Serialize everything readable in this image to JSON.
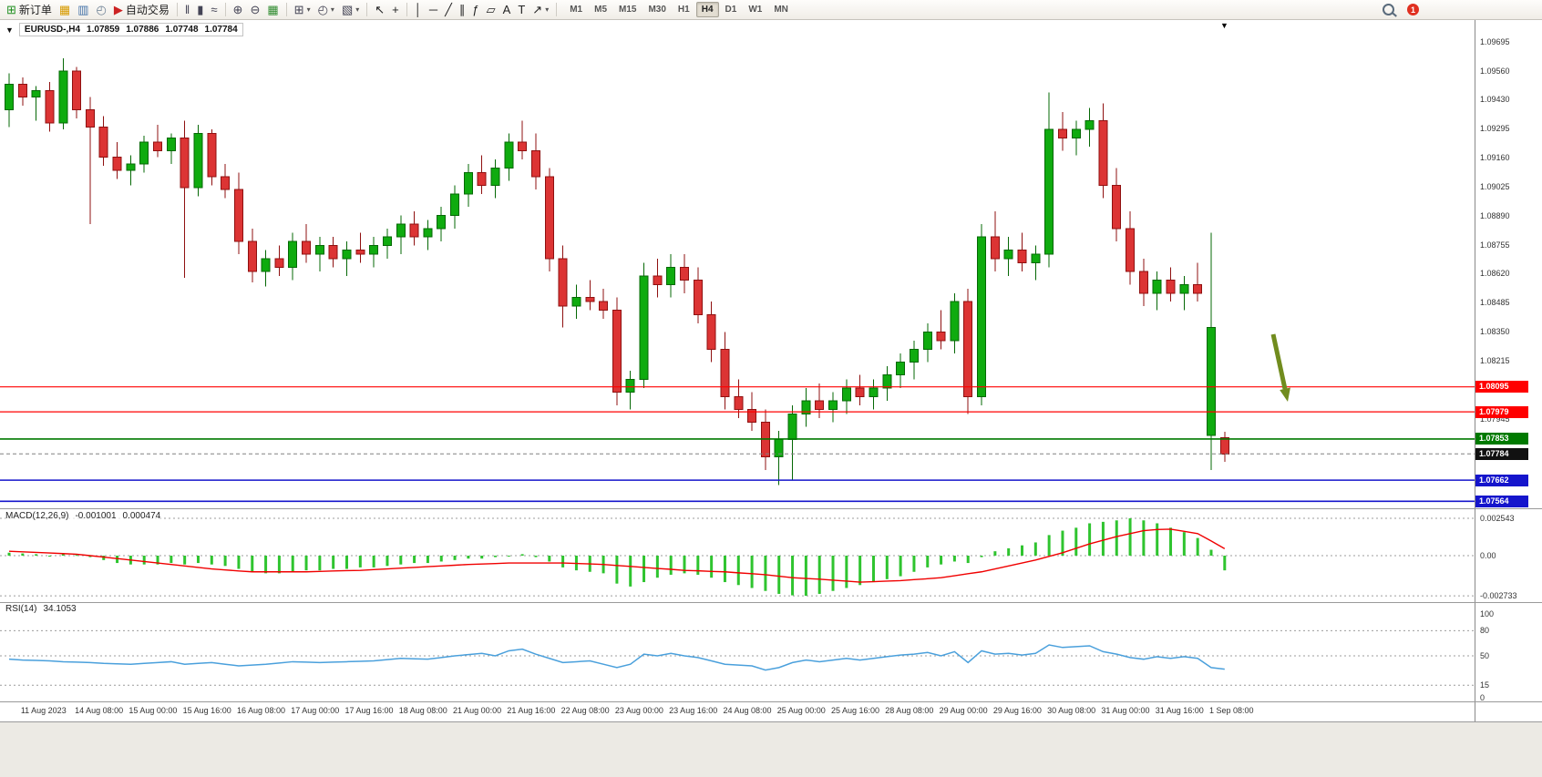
{
  "window": {
    "symbol_period": "EURUSD-,H4",
    "open": "1.07859",
    "high": "1.07886",
    "low": "1.07748",
    "close": "1.07784"
  },
  "icons": {
    "collapse_marker": "▼",
    "bar_marker": "▼",
    "caret": "▾"
  },
  "toolbar": {
    "items": [
      {
        "kind": "button",
        "name": "new-order-button",
        "icon_name": "new-order-icon",
        "glyph": "⊞",
        "glyph_color": "#1f8f1f",
        "label": "新订单"
      },
      {
        "kind": "icon",
        "name": "profiles-icon",
        "glyph": "▦",
        "glyph_color": "#d79b00"
      },
      {
        "kind": "icon",
        "name": "charts-icon",
        "glyph": "▥",
        "glyph_color": "#4472a8"
      },
      {
        "kind": "icon",
        "name": "refresh-icon",
        "glyph": "◴",
        "glyph_color": "#6b7f93"
      },
      {
        "kind": "button",
        "name": "auto-trading-button",
        "icon_name": "auto-trading-icon",
        "glyph": "▶",
        "glyph_color": "#cc2222",
        "label": "自动交易"
      },
      {
        "kind": "sep"
      },
      {
        "kind": "icon",
        "name": "bar-chart-type-icon",
        "glyph": "‖",
        "glyph_color": "#444455"
      },
      {
        "kind": "icon",
        "name": "candle-chart-type-icon",
        "glyph": "▮",
        "glyph_color": "#444455"
      },
      {
        "kind": "icon",
        "name": "line-chart-type-icon",
        "glyph": "≈",
        "glyph_color": "#444455"
      },
      {
        "kind": "sep"
      },
      {
        "kind": "icon",
        "name": "zoom-in-icon",
        "glyph": "⊕",
        "glyph_color": "#444455"
      },
      {
        "kind": "icon",
        "name": "zoom-out-icon",
        "glyph": "⊖",
        "glyph_color": "#444455"
      },
      {
        "kind": "icon",
        "name": "tile-windows-icon",
        "glyph": "▦",
        "glyph_color": "#2e8b2e"
      },
      {
        "kind": "sep"
      },
      {
        "kind": "icon",
        "name": "new-chart-button",
        "glyph": "⊞",
        "glyph_color": "#444455",
        "caret": true
      },
      {
        "kind": "icon",
        "name": "periods-button",
        "glyph": "◴",
        "glyph_color": "#444455",
        "caret": true
      },
      {
        "kind": "icon",
        "name": "templates-button",
        "glyph": "▧",
        "glyph_color": "#444455",
        "caret": true
      },
      {
        "kind": "sep"
      },
      {
        "kind": "icon",
        "name": "cursor-icon",
        "glyph": "↖",
        "glyph_color": "#222222"
      },
      {
        "kind": "icon",
        "name": "crosshair-icon",
        "glyph": "+",
        "glyph_color": "#222222"
      },
      {
        "kind": "sep"
      },
      {
        "kind": "icon",
        "name": "vertical-line-icon",
        "glyph": "│",
        "glyph_color": "#222222"
      },
      {
        "kind": "icon",
        "name": "horizontal-line-icon",
        "glyph": "─",
        "glyph_color": "#222222"
      },
      {
        "kind": "icon",
        "name": "trendline-icon",
        "glyph": "╱",
        "glyph_color": "#222222"
      },
      {
        "kind": "icon",
        "name": "channel-icon",
        "glyph": "∥",
        "glyph_color": "#222222"
      },
      {
        "kind": "icon",
        "name": "fibonacci-icon",
        "glyph": "ƒ",
        "glyph_color": "#222222"
      },
      {
        "kind": "icon",
        "name": "shapes-icon",
        "glyph": "▱",
        "glyph_color": "#222222"
      },
      {
        "kind": "icon",
        "name": "text-icon",
        "glyph": "A",
        "glyph_color": "#222222"
      },
      {
        "kind": "icon",
        "name": "text-label-icon",
        "glyph": "T",
        "glyph_color": "#222222"
      },
      {
        "kind": "icon",
        "name": "arrows-icon",
        "glyph": "↗",
        "glyph_color": "#222222",
        "caret": true
      },
      {
        "kind": "sep"
      }
    ],
    "timeframes": [
      "M1",
      "M5",
      "M15",
      "M30",
      "H1",
      "H4",
      "D1",
      "W1",
      "MN"
    ],
    "active_timeframe": "H4",
    "notification_badge": "1"
  },
  "colors": {
    "bull": "#0fab0f",
    "bull_border": "#056805",
    "bear": "#dc3434",
    "bear_border": "#8f1010",
    "macd_bar": "#2fc42f",
    "macd_signal": "#f00000",
    "rsi_line": "#4aa0dc",
    "grid": "#9c9c9c",
    "bid_line": "#808080",
    "arrow": "#718c1e"
  },
  "chart_data": {
    "type": "candlestick",
    "symbol": "EURUSD-",
    "period": "H4",
    "price_scale_labels": [
      "1.09695",
      "1.09560",
      "1.09430",
      "1.09295",
      "1.09160",
      "1.09025",
      "1.08890",
      "1.08755",
      "1.08620",
      "1.08485",
      "1.08350",
      "1.08215",
      "1.07945"
    ],
    "time_labels": [
      "11 Aug 2023",
      "14 Aug 08:00",
      "15 Aug 00:00",
      "15 Aug 16:00",
      "16 Aug 08:00",
      "17 Aug 00:00",
      "17 Aug 16:00",
      "18 Aug 08:00",
      "21 Aug 00:00",
      "21 Aug 16:00",
      "22 Aug 08:00",
      "23 Aug 00:00",
      "23 Aug 16:00",
      "24 Aug 08:00",
      "25 Aug 00:00",
      "25 Aug 16:00",
      "28 Aug 08:00",
      "29 Aug 00:00",
      "29 Aug 16:00",
      "30 Aug 08:00",
      "31 Aug 00:00",
      "31 Aug 16:00",
      "1 Sep 08:00"
    ],
    "hlines": [
      {
        "price": 1.08095,
        "label": "1.08095",
        "color": "#ff0000",
        "width": 1.2
      },
      {
        "price": 1.07979,
        "label": "1.07979",
        "color": "#ff0000",
        "width": 1.2
      },
      {
        "price": 1.07853,
        "label": "1.07853",
        "color": "#007a00",
        "width": 1.6
      },
      {
        "price": 1.07662,
        "label": "1.07662",
        "color": "#1515cc",
        "width": 1.6
      },
      {
        "price": 1.07564,
        "label": "1.07564",
        "color": "#1515cc",
        "width": 1.6
      }
    ],
    "bid": {
      "price": 1.07784,
      "label": "1.07784",
      "tag_color": "#111111"
    },
    "candles": [
      [
        1.0938,
        1.0955,
        1.093,
        1.095
      ],
      [
        1.095,
        1.0953,
        1.094,
        1.0944
      ],
      [
        1.0944,
        1.0949,
        1.0933,
        1.0947
      ],
      [
        1.0947,
        1.0951,
        1.0928,
        1.0932
      ],
      [
        1.0932,
        1.0962,
        1.0929,
        1.0956
      ],
      [
        1.0956,
        1.0958,
        1.0934,
        1.0938
      ],
      [
        1.0938,
        1.0944,
        1.0885,
        1.093
      ],
      [
        1.093,
        1.0935,
        1.0912,
        1.0916
      ],
      [
        1.0916,
        1.0923,
        1.0906,
        1.091
      ],
      [
        1.091,
        1.0917,
        1.0903,
        1.0913
      ],
      [
        1.0913,
        1.0926,
        1.0909,
        1.0923
      ],
      [
        1.0923,
        1.0931,
        1.0916,
        1.0919
      ],
      [
        1.0919,
        1.0927,
        1.0913,
        1.0925
      ],
      [
        1.0925,
        1.0933,
        1.086,
        1.0902
      ],
      [
        1.0902,
        1.0931,
        1.0898,
        1.0927
      ],
      [
        1.0927,
        1.0929,
        1.0903,
        1.0907
      ],
      [
        1.0907,
        1.0913,
        1.0897,
        1.0901
      ],
      [
        1.0901,
        1.0909,
        1.0871,
        1.0877
      ],
      [
        1.0877,
        1.0883,
        1.0858,
        1.0863
      ],
      [
        1.0863,
        1.0873,
        1.0856,
        1.0869
      ],
      [
        1.0869,
        1.0875,
        1.0861,
        1.0865
      ],
      [
        1.0865,
        1.0881,
        1.0859,
        1.0877
      ],
      [
        1.0877,
        1.0885,
        1.0867,
        1.0871
      ],
      [
        1.0871,
        1.0879,
        1.0863,
        1.0875
      ],
      [
        1.0875,
        1.0879,
        1.0865,
        1.0869
      ],
      [
        1.0869,
        1.0877,
        1.0861,
        1.0873
      ],
      [
        1.0873,
        1.0881,
        1.0867,
        1.0871
      ],
      [
        1.0871,
        1.0879,
        1.0865,
        1.0875
      ],
      [
        1.0875,
        1.0883,
        1.0869,
        1.0879
      ],
      [
        1.0879,
        1.0889,
        1.0871,
        1.0885
      ],
      [
        1.0885,
        1.0891,
        1.0875,
        1.0879
      ],
      [
        1.0879,
        1.0887,
        1.0873,
        1.0883
      ],
      [
        1.0883,
        1.0893,
        1.0877,
        1.0889
      ],
      [
        1.0889,
        1.0903,
        1.0883,
        1.0899
      ],
      [
        1.0899,
        1.0913,
        1.0893,
        1.0909
      ],
      [
        1.0909,
        1.0917,
        1.0899,
        1.0903
      ],
      [
        1.0903,
        1.0915,
        1.0897,
        1.0911
      ],
      [
        1.0911,
        1.0927,
        1.0905,
        1.0923
      ],
      [
        1.0923,
        1.0933,
        1.0915,
        1.0919
      ],
      [
        1.0919,
        1.0927,
        1.0901,
        1.0907
      ],
      [
        1.0907,
        1.0911,
        1.0863,
        1.0869
      ],
      [
        1.0869,
        1.0875,
        1.0837,
        1.0847
      ],
      [
        1.0847,
        1.0857,
        1.0841,
        1.0851
      ],
      [
        1.0851,
        1.0859,
        1.0845,
        1.0849
      ],
      [
        1.0849,
        1.0855,
        1.0841,
        1.0845
      ],
      [
        1.0845,
        1.0851,
        1.0801,
        1.0807
      ],
      [
        1.0807,
        1.0817,
        1.0799,
        1.0813
      ],
      [
        1.0813,
        1.0867,
        1.0809,
        1.0861
      ],
      [
        1.0861,
        1.0869,
        1.0851,
        1.0857
      ],
      [
        1.0857,
        1.0871,
        1.0851,
        1.0865
      ],
      [
        1.0865,
        1.0871,
        1.0853,
        1.0859
      ],
      [
        1.0859,
        1.0865,
        1.0839,
        1.0843
      ],
      [
        1.0843,
        1.0849,
        1.0821,
        1.0827
      ],
      [
        1.0827,
        1.0835,
        1.0799,
        1.0805
      ],
      [
        1.0805,
        1.0813,
        1.0795,
        1.0799
      ],
      [
        1.0799,
        1.0807,
        1.0789,
        1.0793
      ],
      [
        1.0793,
        1.0799,
        1.0771,
        1.0777
      ],
      [
        1.0777,
        1.0789,
        1.0764,
        1.0785
      ],
      [
        1.0785,
        1.0801,
        1.0766,
        1.0797
      ],
      [
        1.0797,
        1.0809,
        1.0791,
        1.0803
      ],
      [
        1.0803,
        1.0811,
        1.0795,
        1.0799
      ],
      [
        1.0799,
        1.0807,
        1.0793,
        1.0803
      ],
      [
        1.0803,
        1.0813,
        1.0797,
        1.0809
      ],
      [
        1.0809,
        1.0815,
        1.0801,
        1.0805
      ],
      [
        1.0805,
        1.0813,
        1.0799,
        1.0809
      ],
      [
        1.0809,
        1.0819,
        1.0803,
        1.0815
      ],
      [
        1.0815,
        1.0825,
        1.0809,
        1.0821
      ],
      [
        1.0821,
        1.0831,
        1.0813,
        1.0827
      ],
      [
        1.0827,
        1.0839,
        1.0821,
        1.0835
      ],
      [
        1.0835,
        1.0845,
        1.0827,
        1.0831
      ],
      [
        1.0831,
        1.0853,
        1.0825,
        1.0849
      ],
      [
        1.0849,
        1.0855,
        1.0797,
        1.0805
      ],
      [
        1.0805,
        1.0885,
        1.0801,
        1.0879
      ],
      [
        1.0879,
        1.0891,
        1.0863,
        1.0869
      ],
      [
        1.0869,
        1.0879,
        1.0861,
        1.0873
      ],
      [
        1.0873,
        1.0881,
        1.0863,
        1.0867
      ],
      [
        1.0867,
        1.0875,
        1.0859,
        1.0871
      ],
      [
        1.0871,
        1.0946,
        1.0865,
        1.0929
      ],
      [
        1.0929,
        1.0937,
        1.0919,
        1.0925
      ],
      [
        1.0925,
        1.0933,
        1.0917,
        1.0929
      ],
      [
        1.0929,
        1.0939,
        1.0921,
        1.0933
      ],
      [
        1.0933,
        1.0941,
        1.0897,
        1.0903
      ],
      [
        1.0903,
        1.0911,
        1.0877,
        1.0883
      ],
      [
        1.0883,
        1.0891,
        1.0857,
        1.0863
      ],
      [
        1.0863,
        1.0869,
        1.0847,
        1.0853
      ],
      [
        1.0853,
        1.0863,
        1.0845,
        1.0859
      ],
      [
        1.0859,
        1.0865,
        1.0849,
        1.0853
      ],
      [
        1.0853,
        1.0861,
        1.0845,
        1.0857
      ],
      [
        1.0857,
        1.0867,
        1.0849,
        1.0853
      ],
      [
        1.0787,
        1.0881,
        1.0771,
        1.0837
      ],
      [
        1.07859,
        1.07886,
        1.07748,
        1.07784
      ]
    ],
    "macd": {
      "label": "MACD(12,26,9)",
      "value_main": "-0.001001",
      "value_signal": "0.000474",
      "scale": [
        {
          "text": "0.002543",
          "value": 0.002543
        },
        {
          "text": "0.00",
          "value": 0
        },
        {
          "text": "-0.002733",
          "value": -0.002733
        }
      ],
      "histogram": [
        0.0002,
        0.00015,
        0.0001,
        0.0,
        0.0001,
        5e-05,
        -0.0001,
        -0.0003,
        -0.0005,
        -0.0006,
        -0.0006,
        -0.0006,
        -0.0005,
        -0.0006,
        -0.0005,
        -0.0006,
        -0.0007,
        -0.0009,
        -0.0011,
        -0.0012,
        -0.0012,
        -0.0011,
        -0.001,
        -0.001,
        -0.0009,
        -0.0009,
        -0.0008,
        -0.0008,
        -0.0007,
        -0.0006,
        -0.0005,
        -0.0005,
        -0.0004,
        -0.0003,
        -0.0002,
        -0.0002,
        -0.0001,
        0.0,
        0.0001,
        -0.0001,
        -0.0004,
        -0.0008,
        -0.001,
        -0.0011,
        -0.0012,
        -0.0019,
        -0.0021,
        -0.0018,
        -0.0015,
        -0.0013,
        -0.0012,
        -0.0013,
        -0.0015,
        -0.0018,
        -0.002,
        -0.0022,
        -0.0024,
        -0.0026,
        -0.0027,
        -0.00273,
        -0.0026,
        -0.0024,
        -0.0022,
        -0.002,
        -0.0018,
        -0.0016,
        -0.0014,
        -0.0011,
        -0.0008,
        -0.0006,
        -0.0004,
        -0.0005,
        -0.0001,
        0.0003,
        0.0005,
        0.0007,
        0.0009,
        0.0014,
        0.0017,
        0.0019,
        0.0022,
        0.0023,
        0.0024,
        0.00254,
        0.0024,
        0.0022,
        0.0019,
        0.0016,
        0.0012,
        0.0004,
        -0.001001
      ],
      "signal": [
        0.0003,
        0.00026,
        0.00022,
        0.00018,
        0.00014,
        0.0001,
        0.0,
        -0.0001,
        -0.0002,
        -0.0003,
        -0.0004,
        -0.0005,
        -0.0006,
        -0.0007,
        -0.0008,
        -0.0009,
        -0.00097,
        -0.00104,
        -0.0011,
        -0.0011,
        -0.0011,
        -0.0011,
        -0.0011,
        -0.00107,
        -0.00104,
        -0.00102,
        -0.001,
        -0.00095,
        -0.0009,
        -0.00085,
        -0.0008,
        -0.00075,
        -0.0007,
        -0.00065,
        -0.0006,
        -0.00057,
        -0.00054,
        -0.0005,
        -0.0005,
        -0.0005,
        -0.0005,
        -0.0005,
        -0.00053,
        -0.00056,
        -0.0006,
        -0.00067,
        -0.00073,
        -0.0008,
        -0.00087,
        -0.00093,
        -0.001,
        -0.00103,
        -0.00107,
        -0.0011,
        -0.00117,
        -0.00123,
        -0.0013,
        -0.0014,
        -0.0015,
        -0.00155,
        -0.0016,
        -0.00167,
        -0.00173,
        -0.0018,
        -0.00177,
        -0.00173,
        -0.0017,
        -0.00163,
        -0.00157,
        -0.0015,
        -0.00137,
        -0.00123,
        -0.0011,
        -0.0009,
        -0.0007,
        -0.0005,
        -0.0003,
        -5e-05,
        0.0002,
        0.0005,
        0.0008,
        0.00105,
        0.0013,
        0.0015,
        0.0017,
        0.00178,
        0.0018,
        0.00165,
        0.0015,
        0.001,
        0.000474
      ]
    },
    "rsi": {
      "label": "RSI(14)",
      "value": "34.1053",
      "scale": [
        {
          "text": "100",
          "value": 100
        },
        {
          "text": "80",
          "value": 80
        },
        {
          "text": "50",
          "value": 50
        },
        {
          "text": "15",
          "value": 15
        },
        {
          "text": "0",
          "value": 0
        }
      ],
      "levels": [
        80,
        50,
        15
      ],
      "values": [
        46,
        45,
        44.5,
        44,
        43,
        42.5,
        42,
        41,
        40.5,
        40,
        41,
        42,
        43,
        40,
        41,
        42,
        40,
        38,
        39,
        40,
        41.5,
        43,
        42.5,
        42,
        42.5,
        43,
        43.5,
        44,
        45.5,
        47,
        46.5,
        46,
        48,
        50,
        51.5,
        53,
        50,
        56,
        58,
        52,
        47,
        42,
        43,
        44,
        40,
        36,
        40,
        52,
        50,
        53,
        50,
        48,
        44,
        40,
        39,
        38,
        33,
        36,
        42,
        45,
        43,
        45,
        47,
        45,
        47,
        49,
        51,
        52,
        54,
        50,
        55,
        42,
        56,
        52,
        53,
        51,
        53,
        63,
        60,
        61,
        62,
        55,
        52,
        48,
        46,
        49,
        47,
        49,
        47,
        36,
        34.1
      ]
    }
  }
}
